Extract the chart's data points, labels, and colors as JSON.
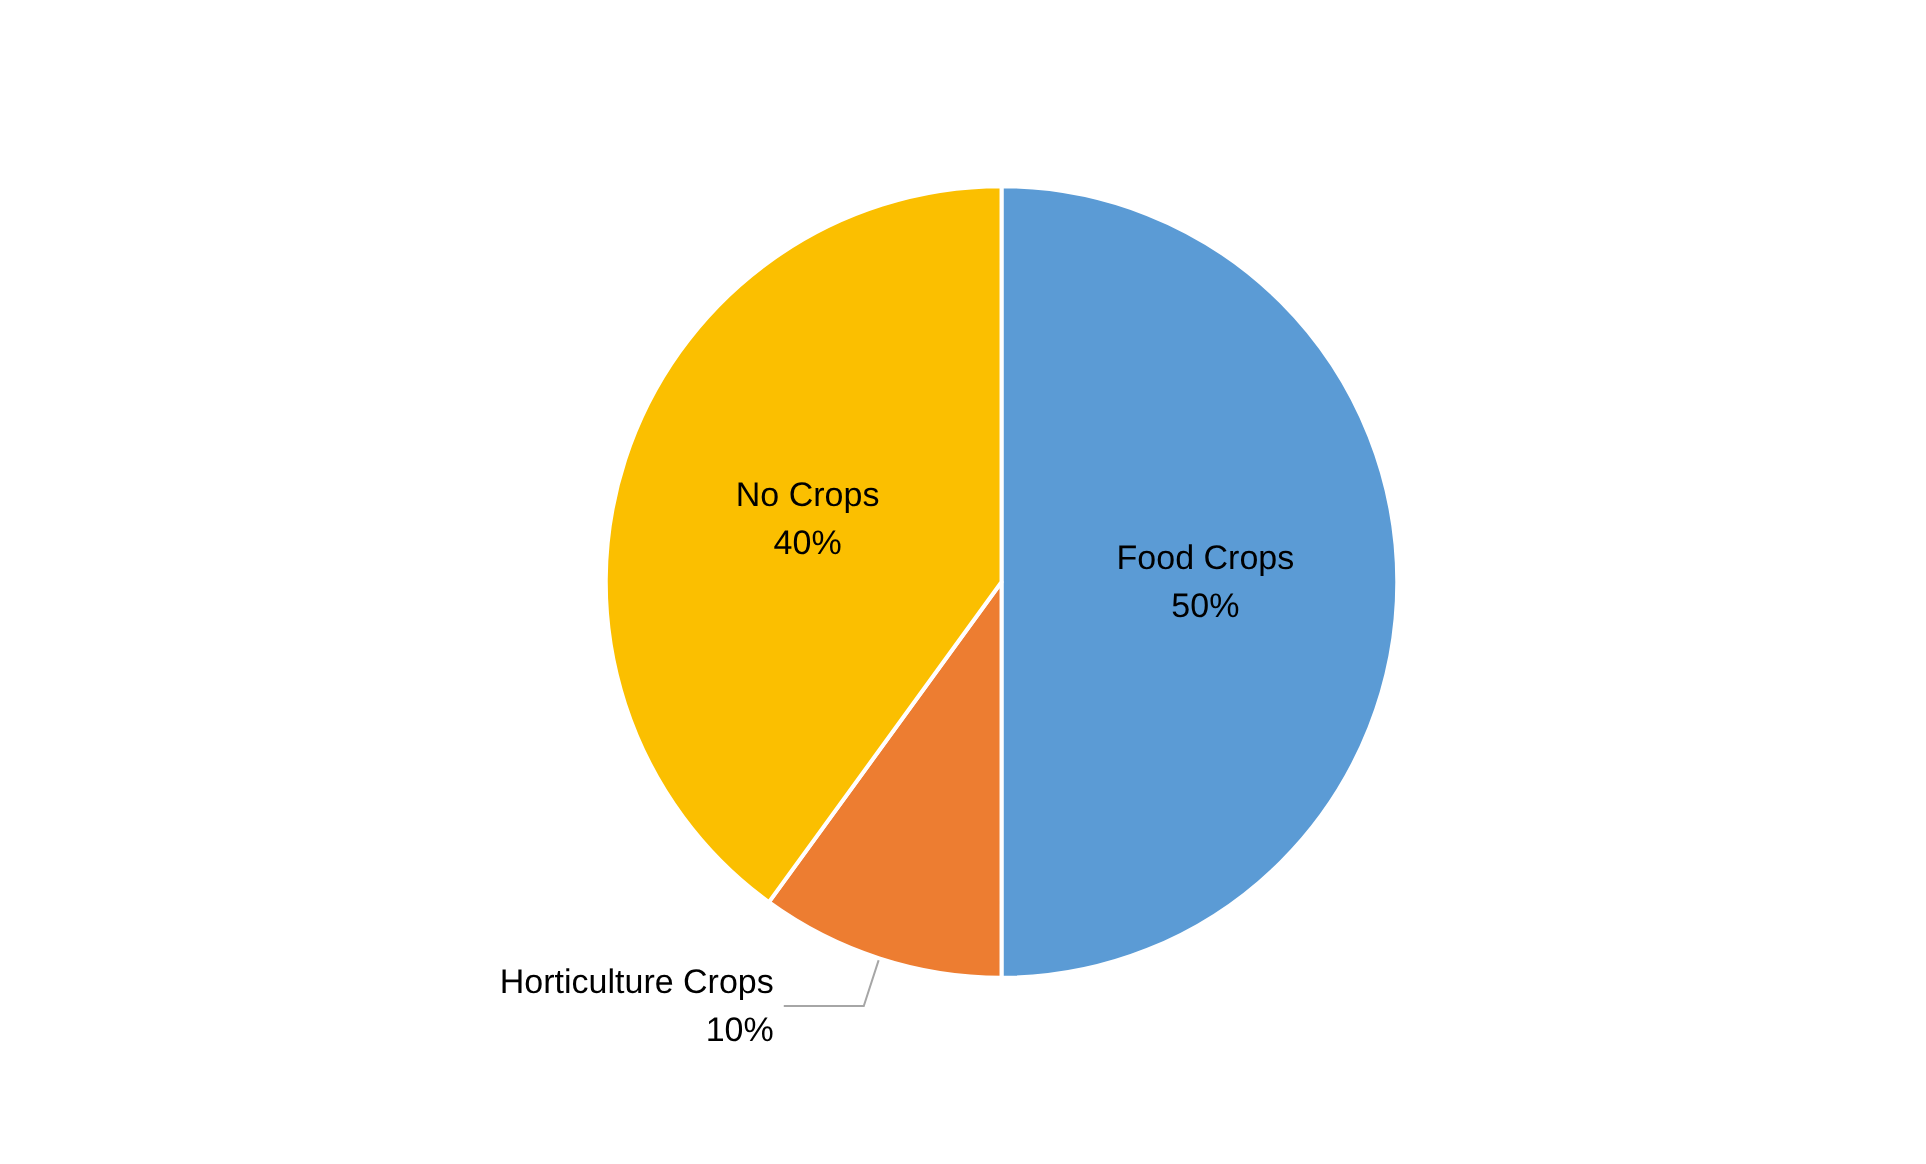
{
  "chart_data": {
    "type": "pie",
    "categories": [
      "Food Crops",
      "Horticulture Crops",
      "No Crops"
    ],
    "values": [
      50,
      10,
      40
    ],
    "value_labels": [
      "50%",
      "10%",
      "40%"
    ],
    "colors": [
      "#5b9bd5",
      "#ed7d31",
      "#fbbf00"
    ],
    "legend": false
  }
}
